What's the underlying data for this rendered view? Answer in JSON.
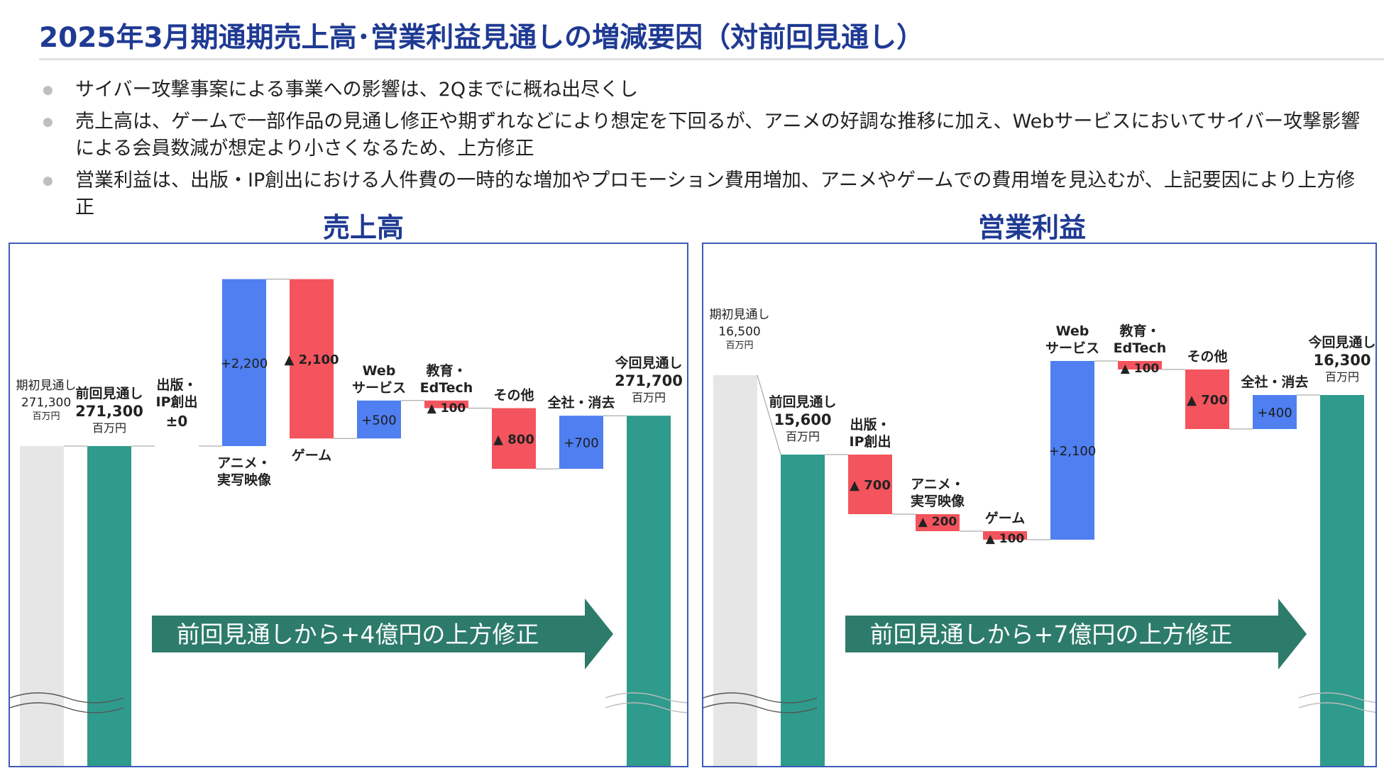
{
  "title": "2025年3月期通期売上高･営業利益見通しの増減要因（対前回見通し）",
  "bullets": [
    "サイバー攻撃事案による事業への影響は、2Qまでに概ね出尽くし",
    "売上高は、ゲームで一部作品の見通し修正や期ずれなどにより想定を下回るが、アニメの好調な推移に加え、Webサービスにおいてサイバー攻撃影響による会員数減が想定より小さくなるため、上方修正",
    "営業利益は、出版・IP創出における人件費の一時的な増加やプロモーション費用増加、アニメやゲームでの費用増を見込むが、上記要因により上方修正"
  ],
  "colors": {
    "start": "#e6e6e6",
    "total": "#2f9b8c",
    "up": "#4f7ff0",
    "down": "#f4545d",
    "arrow": "#2d7b6b",
    "title": "#1f3a93"
  },
  "chart_data": [
    {
      "type": "bar",
      "title": "売上高",
      "unit": "百万円",
      "arrow_text": "前回見通しから+4億円の上方修正",
      "bars": [
        {
          "kind": "start",
          "label": "期初見通し",
          "value": "271,300",
          "unit": "百万円",
          "num": 271300
        },
        {
          "kind": "total",
          "label": "前回見通し",
          "value": "271,300",
          "unit": "百万円",
          "num": 271300
        },
        {
          "kind": "zero",
          "label": "出版・\nIP創出",
          "value": "±0",
          "num": 0
        },
        {
          "kind": "up",
          "label": "アニメ・\n実写映像",
          "value": "+2,200",
          "num": 2200
        },
        {
          "kind": "down",
          "label": "ゲーム",
          "value": "▲ 2,100",
          "num": -2100
        },
        {
          "kind": "up",
          "label": "Web\nサービス",
          "value": "+500",
          "num": 500
        },
        {
          "kind": "down",
          "label": "教育・\nEdTech",
          "value": "▲ 100",
          "num": -100
        },
        {
          "kind": "down",
          "label": "その他",
          "value": "▲ 800",
          "num": -800
        },
        {
          "kind": "up",
          "label": "全社・消去",
          "value": "+700",
          "num": 700
        },
        {
          "kind": "total",
          "label": "今回見通し",
          "value": "271,700",
          "unit": "百万円",
          "num": 271700
        }
      ]
    },
    {
      "type": "bar",
      "title": "営業利益",
      "unit": "百万円",
      "arrow_text": "前回見通しから+7億円の上方修正",
      "bars": [
        {
          "kind": "start",
          "label": "期初見通し",
          "value": "16,500",
          "unit": "百万円",
          "num": 16500
        },
        {
          "kind": "total",
          "label": "前回見通し",
          "value": "15,600",
          "unit": "百万円",
          "num": 15600
        },
        {
          "kind": "down",
          "label": "出版・\nIP創出",
          "value": "▲ 700",
          "num": -700
        },
        {
          "kind": "down",
          "label": "アニメ・\n実写映像",
          "value": "▲ 200",
          "num": -200
        },
        {
          "kind": "down",
          "label": "ゲーム",
          "value": "▲ 100",
          "num": -100
        },
        {
          "kind": "up",
          "label": "Web\nサービス",
          "value": "+2,100",
          "num": 2100
        },
        {
          "kind": "down",
          "label": "教育・\nEdTech",
          "value": "▲ 100",
          "num": -100
        },
        {
          "kind": "down",
          "label": "その他",
          "value": "▲ 700",
          "num": -700
        },
        {
          "kind": "up",
          "label": "全社・消去",
          "value": "+400",
          "num": 400
        },
        {
          "kind": "total",
          "label": "今回見通し",
          "value": "16,300",
          "unit": "百万円",
          "num": 16300
        }
      ]
    }
  ]
}
